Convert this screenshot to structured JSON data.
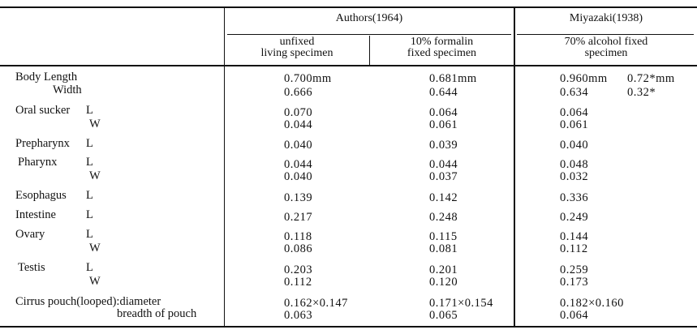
{
  "header": {
    "group1": "Authors(1964)",
    "group2": "Miyazaki(1938)",
    "col1": [
      "unfixed",
      "living specimen"
    ],
    "col2": [
      "10% formalin",
      "fixed specimen"
    ],
    "col3": [
      "70% alcohol fixed",
      "specimen"
    ]
  },
  "rows": [
    {
      "label": "Body Length",
      "dim": "",
      "v1": "0.700mm",
      "v2": "0.681mm",
      "v3": "0.960mm",
      "v4": "0.72*mm"
    },
    {
      "label": "Width",
      "dim": "",
      "v1": "0.666",
      "v2": "0.644",
      "v3": "0.634",
      "v4": "0.32*"
    },
    {
      "label": "Oral sucker",
      "dim": "L",
      "v1": "0.070",
      "v2": "0.064",
      "v3": "0.064"
    },
    {
      "label": "",
      "dim": "W",
      "v1": "0.044",
      "v2": "0.061",
      "v3": "0.061"
    },
    {
      "label": "Prepharynx",
      "dim": "L",
      "v1": "0.040",
      "v2": "0.039",
      "v3": "0.040"
    },
    {
      "label": "Pharynx",
      "dim": "L",
      "v1": "0.044",
      "v2": "0.044",
      "v3": "0.048"
    },
    {
      "label": "",
      "dim": "W",
      "v1": "0.040",
      "v2": "0.037",
      "v3": "0.032"
    },
    {
      "label": "Esophagus",
      "dim": "L",
      "v1": "0.139",
      "v2": "0.142",
      "v3": "0.336"
    },
    {
      "label": "Intestine",
      "dim": "L",
      "v1": "0.217",
      "v2": "0.248",
      "v3": "0.249"
    },
    {
      "label": "Ovary",
      "dim": "L",
      "v1": "0.118",
      "v2": "0.115",
      "v3": "0.144"
    },
    {
      "label": "",
      "dim": "W",
      "v1": "0.086",
      "v2": "0.081",
      "v3": "0.112"
    },
    {
      "label": "Testis",
      "dim": "L",
      "v1": "0.203",
      "v2": "0.201",
      "v3": "0.259"
    },
    {
      "label": "",
      "dim": "W",
      "v1": "0.112",
      "v2": "0.120",
      "v3": "0.173"
    },
    {
      "label": "Cirrus pouch(looped):diameter",
      "dim": "",
      "v1": "0.162×0.147",
      "v2": "0.171×0.154",
      "v3": "0.182×0.160"
    },
    {
      "label": "breadth of pouch",
      "dim": "",
      "v1": "0.063",
      "v2": "0.065",
      "v3": "0.064"
    }
  ]
}
